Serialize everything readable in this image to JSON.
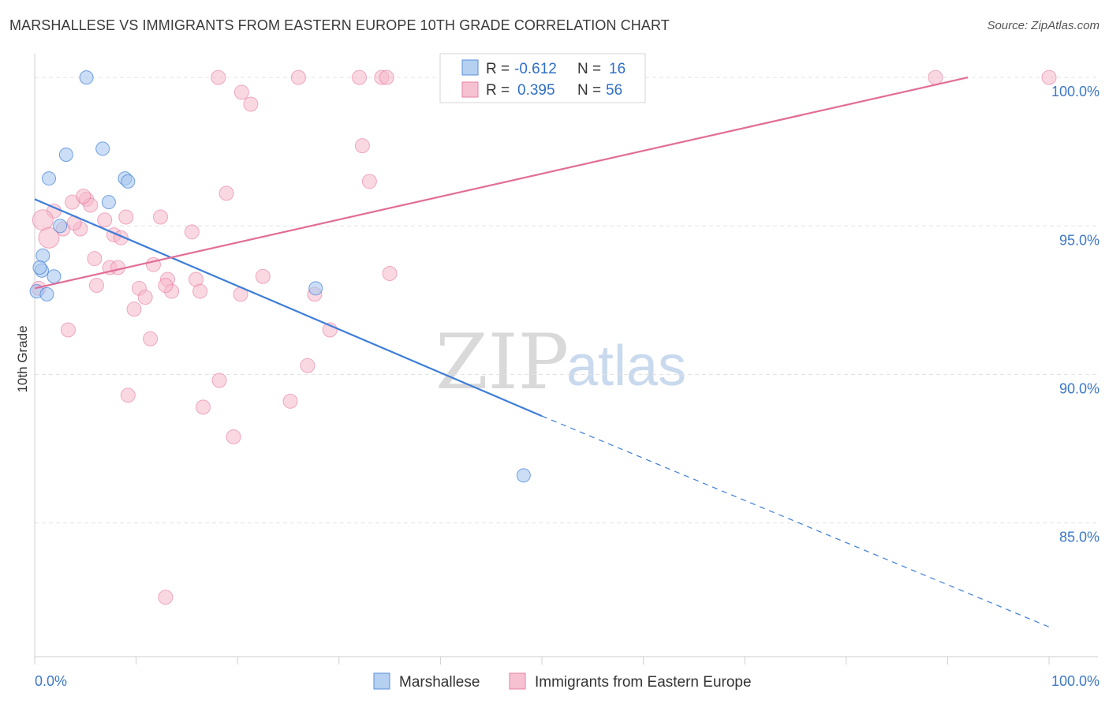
{
  "title": "MARSHALLESE VS IMMIGRANTS FROM EASTERN EUROPE 10TH GRADE CORRELATION CHART",
  "source": "Source: ZipAtlas.com",
  "watermark": {
    "zip": "ZIP",
    "atlas": "atlas"
  },
  "colors": {
    "blue_fill": "#a9c8ef",
    "blue_line": "#3d7dd8",
    "pink_fill": "#f5b8cb",
    "pink_line": "#e26d96",
    "grid": "#e3e3e3",
    "tick_text": "#3d78c8"
  },
  "legend": {
    "rows": [
      {
        "r_label": "R =",
        "r_value": "-0.612",
        "n_label": "N =",
        "n_value": "16"
      },
      {
        "r_label": "R =",
        "r_value": "0.395",
        "n_label": "N =",
        "n_value": "56"
      }
    ]
  },
  "chart_data": {
    "type": "scatter",
    "title": "MARSHALLESE VS IMMIGRANTS FROM EASTERN EUROPE 10TH GRADE CORRELATION CHART",
    "xlabel": "",
    "ylabel": "10th Grade",
    "xlim": [
      0,
      100
    ],
    "ylim": [
      80.5,
      100.8
    ],
    "x_tick_labels": [
      "0.0%",
      "100.0%"
    ],
    "y_ticks": [
      85,
      90,
      95,
      100
    ],
    "y_tick_labels": [
      "85.0%",
      "90.0%",
      "95.0%",
      "100.0%"
    ],
    "legend_position": "bottom",
    "series": [
      {
        "name": "Marshallese",
        "color": "#a9c8ef",
        "points": [
          [
            5.1,
            100.0
          ],
          [
            3.1,
            97.4
          ],
          [
            6.7,
            97.6
          ],
          [
            1.4,
            96.6
          ],
          [
            8.9,
            96.6
          ],
          [
            9.2,
            96.5
          ],
          [
            7.3,
            95.8
          ],
          [
            2.5,
            95.0
          ],
          [
            0.8,
            94.0
          ],
          [
            0.7,
            93.5
          ],
          [
            1.9,
            93.3
          ],
          [
            0.2,
            92.8
          ],
          [
            1.2,
            92.7
          ],
          [
            27.7,
            92.9
          ],
          [
            48.2,
            86.6
          ],
          [
            0.5,
            93.6
          ]
        ],
        "trend": {
          "x0": 0,
          "y0": 95.9,
          "x1": 50,
          "y1": 88.6,
          "dashed_to": {
            "x": 100,
            "y": 81.5
          }
        }
      },
      {
        "name": "Immigrants from Eastern Europe",
        "color": "#f5b8cb",
        "points": [
          [
            18.1,
            100.0
          ],
          [
            26.0,
            100.0
          ],
          [
            32.0,
            100.0
          ],
          [
            34.2,
            100.0
          ],
          [
            34.7,
            100.0
          ],
          [
            88.8,
            100.0
          ],
          [
            100.0,
            100.0
          ],
          [
            20.4,
            99.5
          ],
          [
            21.3,
            99.1
          ],
          [
            32.3,
            97.7
          ],
          [
            33.0,
            96.5
          ],
          [
            18.9,
            96.1
          ],
          [
            3.7,
            95.8
          ],
          [
            5.1,
            95.9
          ],
          [
            5.5,
            95.7
          ],
          [
            1.9,
            95.5
          ],
          [
            0.8,
            95.2
          ],
          [
            12.4,
            95.3
          ],
          [
            9.0,
            95.3
          ],
          [
            6.9,
            95.2
          ],
          [
            2.8,
            94.9
          ],
          [
            4.5,
            94.9
          ],
          [
            15.5,
            94.8
          ],
          [
            7.8,
            94.7
          ],
          [
            8.5,
            94.6
          ],
          [
            1.4,
            94.6
          ],
          [
            5.9,
            93.9
          ],
          [
            7.4,
            93.6
          ],
          [
            8.2,
            93.6
          ],
          [
            11.7,
            93.7
          ],
          [
            22.5,
            93.3
          ],
          [
            35.0,
            93.4
          ],
          [
            13.1,
            93.2
          ],
          [
            15.9,
            93.2
          ],
          [
            10.3,
            92.9
          ],
          [
            13.5,
            92.8
          ],
          [
            16.3,
            92.8
          ],
          [
            12.9,
            93.0
          ],
          [
            10.9,
            92.6
          ],
          [
            20.3,
            92.7
          ],
          [
            27.6,
            92.7
          ],
          [
            9.8,
            92.2
          ],
          [
            3.3,
            91.5
          ],
          [
            29.1,
            91.5
          ],
          [
            11.4,
            91.2
          ],
          [
            26.9,
            90.3
          ],
          [
            18.2,
            89.8
          ],
          [
            9.2,
            89.3
          ],
          [
            16.6,
            88.9
          ],
          [
            25.2,
            89.1
          ],
          [
            19.6,
            87.9
          ],
          [
            12.9,
            82.5
          ],
          [
            0.4,
            92.9
          ],
          [
            4.8,
            96.0
          ],
          [
            3.9,
            95.1
          ],
          [
            6.1,
            93.0
          ]
        ],
        "trend": {
          "x0": 0,
          "y0": 92.9,
          "x1": 92,
          "y1": 100.0
        }
      }
    ]
  }
}
